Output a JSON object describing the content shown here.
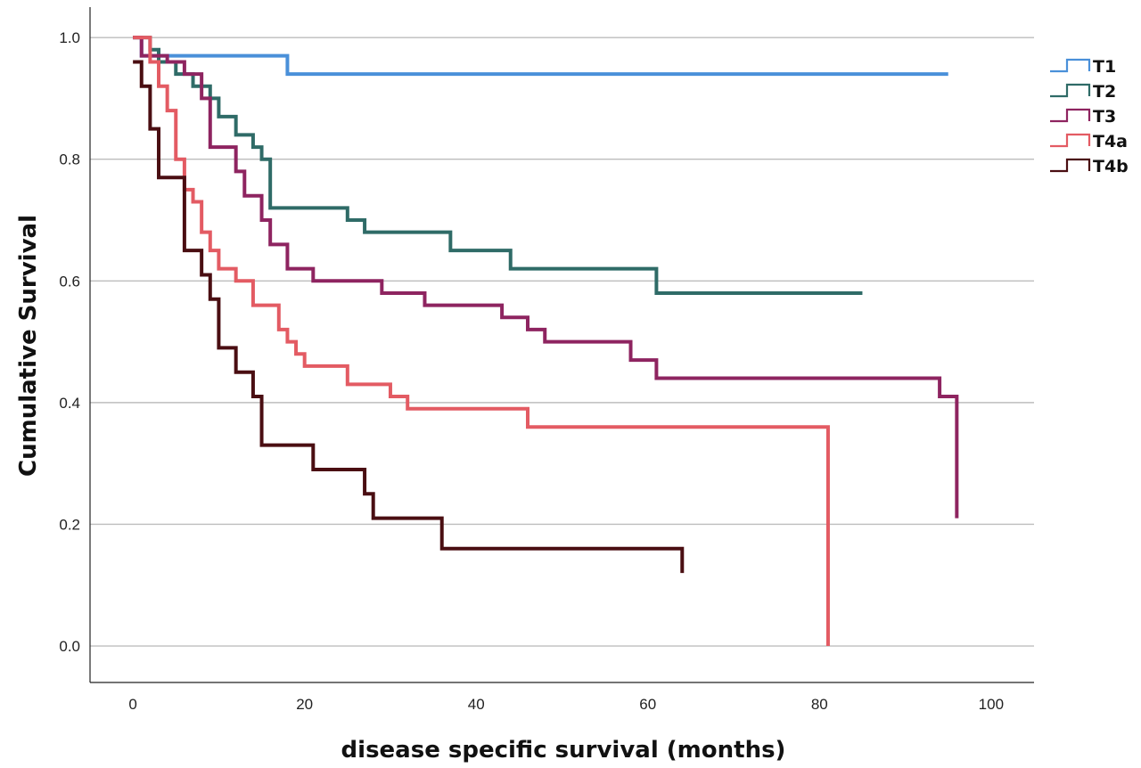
{
  "chart_data": {
    "type": "line",
    "subtype": "kaplan-meier-step",
    "title": "",
    "xlabel": "disease specific survival (months)",
    "ylabel": "Cumulative Survival",
    "xlim": [
      -5,
      105
    ],
    "ylim": [
      -0.06,
      1.05
    ],
    "xticks": [
      0,
      20,
      40,
      60,
      80,
      100
    ],
    "yticks": [
      0.0,
      0.2,
      0.4,
      0.6,
      0.8,
      1.0
    ],
    "xtick_labels": [
      "0",
      "20",
      "40",
      "60",
      "80",
      "100"
    ],
    "ytick_labels": [
      "0.0",
      "0.2",
      "0.4",
      "0.6",
      "0.8",
      "1.0"
    ],
    "grid": "horizontal",
    "legend": "top-right",
    "series": [
      {
        "name": "T1",
        "color": "#4a90d9",
        "x": [
          0,
          1,
          18,
          95
        ],
        "y": [
          1.0,
          0.97,
          0.94,
          0.94
        ]
      },
      {
        "name": "T2",
        "color": "#2f6b67",
        "x": [
          0,
          2,
          3,
          5,
          7,
          9,
          10,
          12,
          14,
          15,
          16,
          25,
          27,
          37,
          44,
          61,
          85
        ],
        "y": [
          1.0,
          0.98,
          0.96,
          0.94,
          0.92,
          0.9,
          0.87,
          0.84,
          0.82,
          0.8,
          0.72,
          0.7,
          0.68,
          0.65,
          0.62,
          0.58,
          0.58
        ]
      },
      {
        "name": "T3",
        "color": "#8e2460",
        "x": [
          0,
          1,
          4,
          6,
          8,
          9,
          12,
          13,
          15,
          16,
          18,
          21,
          29,
          34,
          43,
          46,
          48,
          58,
          61,
          94,
          96
        ],
        "y": [
          1.0,
          0.97,
          0.96,
          0.94,
          0.9,
          0.82,
          0.78,
          0.74,
          0.7,
          0.66,
          0.62,
          0.6,
          0.58,
          0.56,
          0.54,
          0.52,
          0.5,
          0.47,
          0.44,
          0.41,
          0.21
        ]
      },
      {
        "name": "T4a",
        "color": "#e35b63",
        "x": [
          0,
          2,
          3,
          4,
          5,
          6,
          7,
          8,
          9,
          10,
          12,
          14,
          17,
          18,
          19,
          20,
          25,
          30,
          32,
          46,
          81
        ],
        "y": [
          1.0,
          0.96,
          0.92,
          0.88,
          0.8,
          0.75,
          0.73,
          0.68,
          0.65,
          0.62,
          0.6,
          0.56,
          0.52,
          0.5,
          0.48,
          0.46,
          0.43,
          0.41,
          0.39,
          0.36,
          0.32
        ]
      },
      {
        "name": "T4b",
        "color": "#4a0e12",
        "x": [
          0,
          1,
          2,
          3,
          4,
          6,
          8,
          9,
          10,
          12,
          14,
          15,
          21,
          27,
          28,
          36,
          64
        ],
        "y": [
          0.96,
          0.92,
          0.85,
          0.77,
          0.77,
          0.65,
          0.61,
          0.57,
          0.49,
          0.45,
          0.41,
          0.33,
          0.29,
          0.25,
          0.21,
          0.16,
          0.12
        ]
      }
    ],
    "terminal_drops": [
      {
        "series": "T4a",
        "x": 81,
        "y_from": 0.32,
        "y_to": 0.0
      }
    ],
    "series_end_x": {
      "T1": 95,
      "T2": 85,
      "T3": 96,
      "T4a": 81,
      "T4b": 64
    }
  }
}
